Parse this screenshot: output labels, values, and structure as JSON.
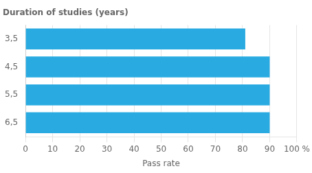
{
  "chart_data": {
    "type": "bar",
    "orientation": "horizontal",
    "title": "Duration of studies (years)",
    "x_label": "Pass rate",
    "categories": [
      "3,5",
      "4,5",
      "5,5",
      "6,5"
    ],
    "values": [
      81,
      90,
      90,
      90
    ],
    "color": "#29ABE2",
    "xlim": [
      0,
      100
    ],
    "xticks": [
      0,
      10,
      20,
      30,
      40,
      50,
      60,
      70,
      80,
      90,
      {
        "value": 100,
        "label": "100 %"
      }
    ],
    "grid": true
  }
}
